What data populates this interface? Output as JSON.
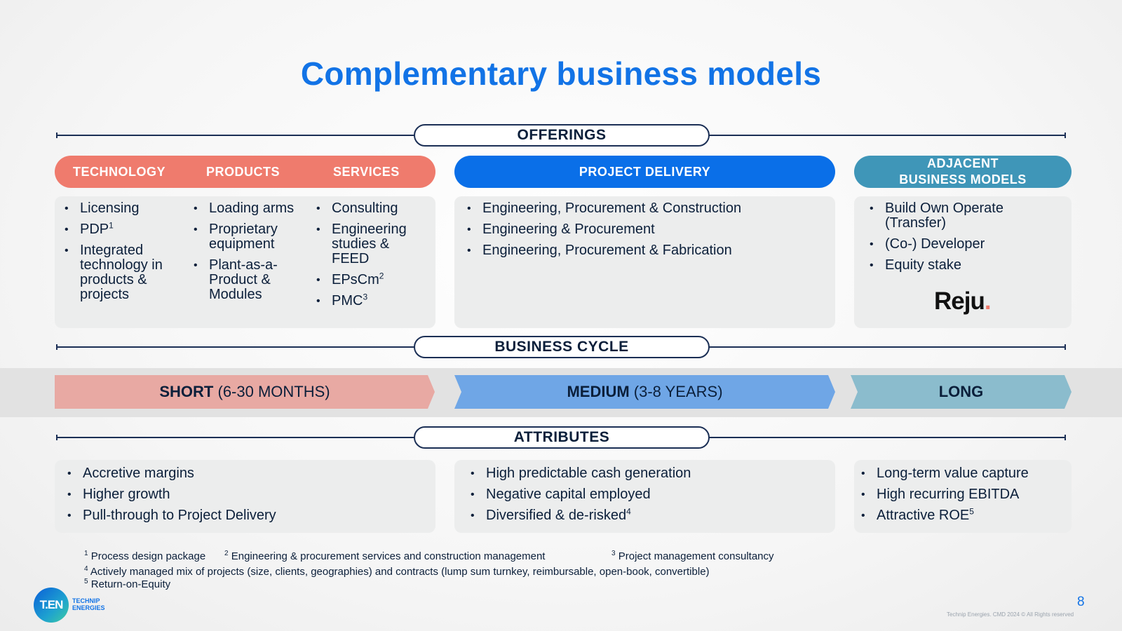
{
  "title": "Complementary business models",
  "sections": {
    "offerings": "OFFERINGS",
    "business_cycle": "BUSINESS CYCLE",
    "attributes": "ATTRIBUTES"
  },
  "offerings": {
    "tps": {
      "headers": [
        "TECHNOLOGY",
        "PRODUCTS",
        "SERVICES"
      ],
      "technology": [
        {
          "text": "Licensing",
          "sup": ""
        },
        {
          "text": "PDP",
          "sup": "1"
        },
        {
          "text": "Integrated technology in products & projects",
          "sup": ""
        }
      ],
      "products": [
        {
          "text": "Loading arms",
          "sup": ""
        },
        {
          "text": "Proprietary equipment",
          "sup": ""
        },
        {
          "text": "Plant-as-a-Product & Modules",
          "sup": ""
        }
      ],
      "services": [
        {
          "text": "Consulting",
          "sup": ""
        },
        {
          "text": "Engineering studies & FEED",
          "sup": ""
        },
        {
          "text": "EPsCm",
          "sup": "2"
        },
        {
          "text": "PMC",
          "sup": "3"
        }
      ]
    },
    "project_delivery": {
      "header": "PROJECT DELIVERY",
      "items": [
        "Engineering, Procurement & Construction",
        "Engineering & Procurement",
        "Engineering, Procurement & Fabrication"
      ]
    },
    "adjacent": {
      "header_line1": "ADJACENT",
      "header_line2": "BUSINESS MODELS",
      "items": [
        "Build Own Operate (Transfer)",
        "(Co-) Developer",
        "Equity stake"
      ],
      "logo_text": "Reju"
    }
  },
  "cycle": {
    "short": {
      "bold": "SHORT",
      "rest": " (6-30 MONTHS)"
    },
    "medium": {
      "bold": "MEDIUM",
      "rest": " (3-8 YEARS)"
    },
    "long": {
      "bold": "LONG",
      "rest": ""
    }
  },
  "attributes": {
    "short": [
      {
        "text": "Accretive margins",
        "sup": ""
      },
      {
        "text": "Higher growth",
        "sup": ""
      },
      {
        "text": "Pull-through to Project Delivery",
        "sup": ""
      }
    ],
    "medium": [
      {
        "text": "High predictable cash generation",
        "sup": ""
      },
      {
        "text": "Negative capital employed",
        "sup": ""
      },
      {
        "text": "Diversified & de-risked",
        "sup": "4"
      }
    ],
    "long": [
      {
        "text": "Long-term value capture",
        "sup": ""
      },
      {
        "text": "High recurring EBITDA",
        "sup": ""
      },
      {
        "text": "Attractive ROE",
        "sup": "5"
      }
    ]
  },
  "footnotes": {
    "fn1": {
      "num": "1",
      "text": "Process design package"
    },
    "fn2": {
      "num": "2",
      "text": "Engineering & procurement services and construction management"
    },
    "fn3": {
      "num": "3",
      "text": "Project management consultancy"
    },
    "fn4": {
      "num": "4",
      "text": "Actively managed mix of projects (size, clients, geographies) and contracts (lump sum turnkey, reimbursable, open-book, convertible)"
    },
    "fn5": {
      "num": "5",
      "text": "Return-on-Equity"
    }
  },
  "logo": {
    "mark": "T.EN",
    "line1": "TECHNIP",
    "line2": "ENERGIES"
  },
  "page_number": "8",
  "copyright": "Technip Energies. CMD 2024 © All Rights reserved",
  "colors": {
    "title_blue": "#1273e6",
    "coral": "#ef7b6d",
    "project_blue": "#0a6fe8",
    "teal": "#3f96b8",
    "short_arrow": "#e8a9a3",
    "medium_arrow": "#6fa6e6",
    "long_arrow": "#8bbccd"
  }
}
